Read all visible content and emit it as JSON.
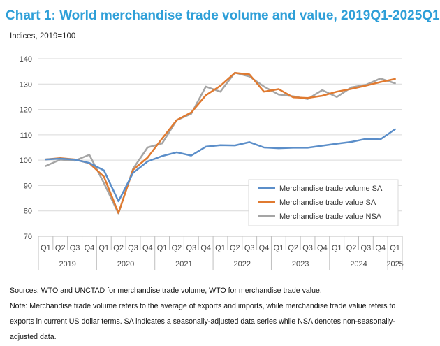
{
  "title": "Chart 1: World merchandise trade volume and value, 2019Q1-2025Q1",
  "subtitle": "Indices, 2019=100",
  "notes": {
    "sources": "Sources: WTO and UNCTAD for merchandise trade volume, WTO for merchandise trade value.",
    "note": "Note: Merchandise trade volume refers to the average of exports and imports, while merchandise trade value refers to exports in current US dollar terms.  SA indicates a seasonally-adjusted data series while NSA denotes non-seasonally-adjusted data."
  },
  "chart_data": {
    "type": "line",
    "categories": [
      "Q1",
      "Q2",
      "Q3",
      "Q4",
      "Q1",
      "Q2",
      "Q3",
      "Q4",
      "Q1",
      "Q2",
      "Q3",
      "Q4",
      "Q1",
      "Q2",
      "Q3",
      "Q4",
      "Q1",
      "Q2",
      "Q3",
      "Q4",
      "Q1",
      "Q2",
      "Q3",
      "Q4",
      "Q1"
    ],
    "year_groups": [
      {
        "label": "2019",
        "count": 4
      },
      {
        "label": "2020",
        "count": 4
      },
      {
        "label": "2021",
        "count": 4
      },
      {
        "label": "2022",
        "count": 4
      },
      {
        "label": "2023",
        "count": 4
      },
      {
        "label": "2024",
        "count": 4
      },
      {
        "label": "2025",
        "count": 1
      }
    ],
    "ylim": [
      70,
      140
    ],
    "yticks": [
      70,
      80,
      90,
      100,
      110,
      120,
      130,
      140
    ],
    "grid": true,
    "legend_position": "bottom-right",
    "series": [
      {
        "name": "Merchandise trade volume SA",
        "color": "#5b8ec9",
        "values": [
          100.3,
          100.6,
          100.2,
          98.9,
          96.0,
          83.8,
          95.0,
          99.5,
          101.6,
          103.1,
          101.8,
          105.3,
          105.9,
          105.8,
          107.1,
          105.0,
          104.7,
          104.9,
          104.9,
          105.7,
          106.5,
          107.2,
          108.4,
          108.2,
          112.2
        ]
      },
      {
        "name": "Merchandise trade value  SA",
        "color": "#e07a30",
        "values": [
          100.3,
          100.8,
          100.3,
          98.8,
          93.5,
          79.2,
          96.2,
          101.0,
          108.5,
          115.8,
          118.8,
          125.6,
          129.3,
          134.4,
          133.8,
          127.0,
          128.0,
          124.8,
          124.5,
          125.4,
          127.0,
          128.1,
          129.4,
          130.8,
          132.0
        ]
      },
      {
        "name": "Merchandise trade value NSA",
        "color": "#a5a5a5",
        "values": [
          97.7,
          100.2,
          99.8,
          102.1,
          91.0,
          79.0,
          96.6,
          105.0,
          106.6,
          115.8,
          118.3,
          129.0,
          127.0,
          134.5,
          133.0,
          129.0,
          125.9,
          125.2,
          124.1,
          127.6,
          124.9,
          128.7,
          129.7,
          132.2,
          130.3
        ]
      }
    ]
  }
}
